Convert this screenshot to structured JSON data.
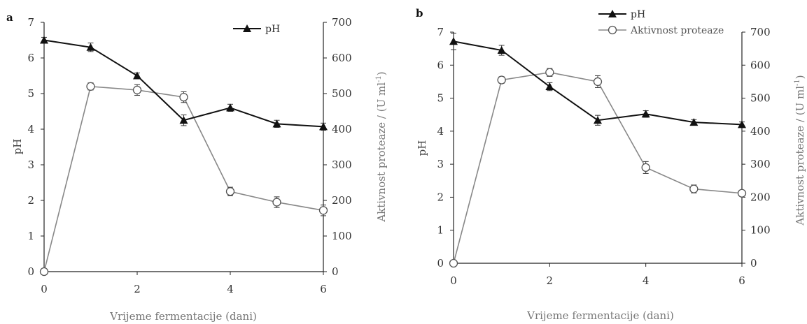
{
  "chart_data": [
    {
      "type": "line",
      "panel_label": "a",
      "xlabel": "Vrijeme fermentacije (dani)",
      "ylabel": "pH",
      "ylabel_right": "Aktivnost proteaze / (U ml",
      "ylabel_right_sup": "-1",
      "ylabel_right_end": ")",
      "xlim": [
        0,
        6
      ],
      "ylim": [
        0,
        7
      ],
      "ylim_right": [
        0,
        700
      ],
      "x_ticks": [
        "0",
        "2",
        "4",
        "6"
      ],
      "y_ticks": [
        "0",
        "1",
        "2",
        "3",
        "4",
        "5",
        "6",
        "7"
      ],
      "y_right_ticks": [
        "0",
        "100",
        "200",
        "300",
        "400",
        "500",
        "600",
        "700"
      ],
      "legend": [
        "pH"
      ],
      "series": [
        {
          "name": "pH",
          "axis": "left",
          "marker": "triangle",
          "color": "#111111",
          "x": [
            0,
            1,
            2,
            3,
            4,
            5,
            6
          ],
          "values": [
            6.5,
            6.3,
            5.5,
            4.25,
            4.6,
            4.15,
            4.07
          ],
          "error": [
            0.08,
            0.12,
            0.08,
            0.15,
            0.1,
            0.1,
            0.1
          ]
        },
        {
          "name": "",
          "axis": "right",
          "marker": "circle",
          "color": "#888888",
          "x": [
            0,
            1,
            2,
            3,
            4,
            5,
            6
          ],
          "values": [
            0,
            520,
            510,
            490,
            225,
            195,
            172
          ],
          "error": [
            0,
            10,
            15,
            15,
            12,
            15,
            15
          ]
        }
      ]
    },
    {
      "type": "line",
      "panel_label": "b",
      "xlabel": "Vrijeme fermentacije (dani)",
      "ylabel": "pH",
      "ylabel_right": "Aktivnost proteaze / (U ml",
      "ylabel_right_sup": "-1",
      "ylabel_right_end": ")",
      "xlim": [
        0,
        6
      ],
      "ylim": [
        0,
        7
      ],
      "ylim_right": [
        0,
        700
      ],
      "x_ticks": [
        "0",
        "2",
        "4",
        "6"
      ],
      "y_ticks": [
        "0",
        "1",
        "2",
        "3",
        "4",
        "5",
        "6",
        "7"
      ],
      "y_right_ticks": [
        "0",
        "100",
        "200",
        "300",
        "400",
        "500",
        "600",
        "700"
      ],
      "legend": [
        "pH",
        "Aktivnost proteaze"
      ],
      "series": [
        {
          "name": "pH",
          "axis": "left",
          "marker": "triangle",
          "color": "#111111",
          "x": [
            0,
            1,
            2,
            3,
            4,
            5,
            6
          ],
          "values": [
            6.72,
            6.45,
            5.35,
            4.33,
            4.52,
            4.27,
            4.2
          ],
          "error": [
            0.25,
            0.15,
            0.12,
            0.15,
            0.1,
            0.08,
            0.08
          ]
        },
        {
          "name": "Aktivnost proteaze",
          "axis": "right",
          "marker": "circle",
          "color": "#888888",
          "x": [
            0,
            1,
            2,
            3,
            4,
            5,
            6
          ],
          "values": [
            0,
            555,
            578,
            550,
            290,
            225,
            212
          ],
          "error": [
            0,
            10,
            12,
            18,
            18,
            12,
            8
          ]
        }
      ]
    }
  ]
}
